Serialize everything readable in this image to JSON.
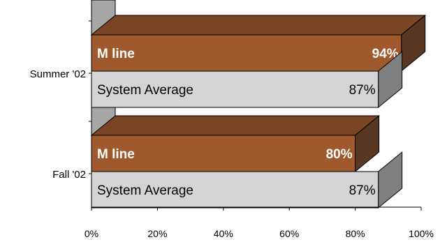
{
  "chart_data": {
    "type": "bar",
    "orientation": "horizontal",
    "style": "3d",
    "title": "",
    "xlabel": "",
    "ylabel": "",
    "xlim": [
      0,
      100
    ],
    "grid": false,
    "legend": "none",
    "categories": [
      "Summer '02",
      "Fall '02"
    ],
    "x_ticks": [
      "0%",
      "20%",
      "40%",
      "60%",
      "80%",
      "100%"
    ],
    "series": [
      {
        "name": "M line",
        "values": [
          94,
          80
        ],
        "labels": [
          "94%",
          "80%"
        ],
        "color": "#A0592D",
        "side_color": "#5A3722",
        "top_color": "#7A4525",
        "text_color": "#FFFFFF",
        "bold": true
      },
      {
        "name": "System Average",
        "values": [
          87,
          87
        ],
        "labels": [
          "87%",
          "87%"
        ],
        "color": "#D4D4D4",
        "side_color": "#7F7F7F",
        "top_color": "#A9A9A9",
        "text_color": "#000000",
        "bold": false
      }
    ]
  }
}
